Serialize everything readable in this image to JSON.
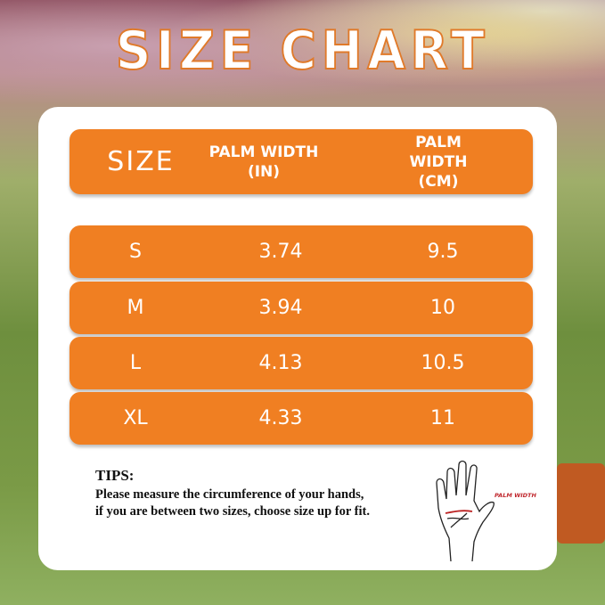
{
  "title": "SIZE CHART",
  "table": {
    "headers": [
      {
        "line1": "SIZE",
        "line2": ""
      },
      {
        "line1": "PALM WIDTH",
        "line2": "(IN)"
      },
      {
        "line1": "PALM WIDTH",
        "line2": "(CM)"
      }
    ],
    "rows": [
      [
        "S",
        "3.74",
        "9.5"
      ],
      [
        "M",
        "3.94",
        "10"
      ],
      [
        "L",
        "4.13",
        "10.5"
      ],
      [
        "XL",
        "4.33",
        "11"
      ]
    ]
  },
  "tips": {
    "heading": "TIPS:",
    "line1": "Please measure the circumference of your hands,",
    "line2": "if you are between two sizes, choose size up for fit."
  },
  "diagram": {
    "label": "PALM WIDTH",
    "icon": "hand-outline-icon"
  },
  "colors": {
    "accent": "#f07f22",
    "label_red": "#c0272d"
  }
}
